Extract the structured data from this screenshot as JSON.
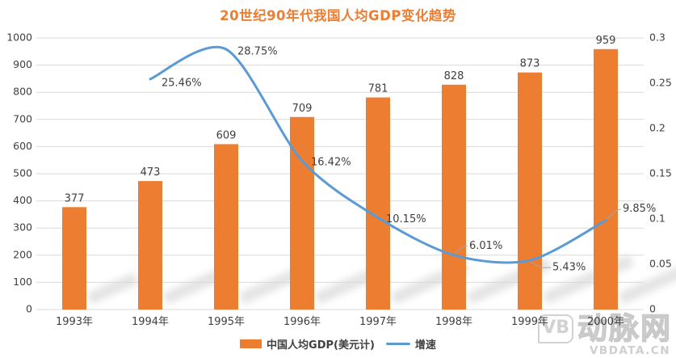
{
  "chart_data": {
    "type": "combo",
    "title": "20世纪90年代我国人均GDP变化趋势",
    "title_color": "#ED7D31",
    "categories": [
      "1993年",
      "1994年",
      "1995年",
      "1996年",
      "1997年",
      "1998年",
      "1999年",
      "2000年"
    ],
    "series": [
      {
        "name": "中国人均GDP(美元计)",
        "type": "bar",
        "axis": "left",
        "color": "#ED7D31",
        "values": [
          377,
          473,
          609,
          709,
          781,
          828,
          873,
          959
        ]
      },
      {
        "name": "增速",
        "type": "line",
        "axis": "right",
        "color": "#5B9BD5",
        "values": [
          null,
          0.2546,
          0.2875,
          0.1642,
          0.1015,
          0.0601,
          0.0543,
          0.0985
        ],
        "point_labels": [
          null,
          "25.46%",
          "28.75%",
          "16.42%",
          "10.15%",
          "6.01%",
          "5.43%",
          "9.85%"
        ]
      }
    ],
    "left_axis": {
      "min": 0,
      "max": 1000,
      "tick_labels": [
        "0",
        "100",
        "200",
        "300",
        "400",
        "500",
        "600",
        "700",
        "800",
        "900",
        "1000"
      ]
    },
    "right_axis": {
      "min": 0,
      "max": 0.3,
      "tick_labels": [
        "0",
        "0.05",
        "0.1",
        "0.15",
        "0.2",
        "0.25",
        "0.3"
      ]
    },
    "grid": true,
    "legend_position": "bottom",
    "colors": {
      "grid": "#D9D9D9",
      "axis_text": "#404040",
      "data_label": "#404040",
      "leader_line": "#A6A6A6",
      "shadow": "#ACACAC"
    }
  },
  "watermark": {
    "logo": "VB",
    "name": "动脉网",
    "domain": "VBDATA.CN"
  }
}
